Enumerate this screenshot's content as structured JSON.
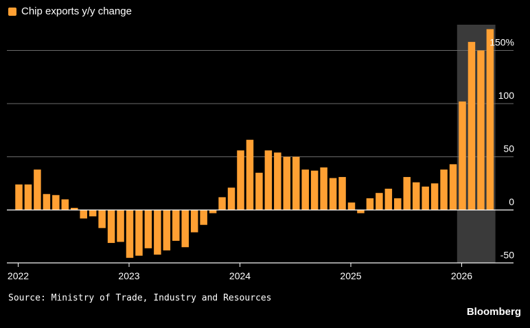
{
  "legend": {
    "label": "Chip exports y/y change"
  },
  "source": "Source: Ministry of Trade, Industry and Resources",
  "brand": "Bloomberg",
  "colors": {
    "bar": "#ffa033",
    "background": "#000000",
    "grid": "#6b6b6b",
    "highlight": "#3a3a3a",
    "text": "#ffffff"
  },
  "chart_data": {
    "type": "bar",
    "title": "",
    "xlabel": "",
    "ylabel": "",
    "ylim": [
      -50,
      170
    ],
    "y_ticks": [
      -50,
      0,
      50,
      100,
      150
    ],
    "y_tick_labels": [
      "-50",
      "0",
      "50",
      "100",
      "150%"
    ],
    "x_tick_labels": [
      "2022",
      "2023",
      "2024",
      "2025",
      "2026"
    ],
    "grid": "horizontal",
    "legend_position": "top-left",
    "highlighted_range": [
      "2026-01",
      "2026-04"
    ],
    "series": [
      {
        "name": "Chip exports y/y change",
        "x": [
          "2022-01",
          "2022-02",
          "2022-03",
          "2022-04",
          "2022-05",
          "2022-06",
          "2022-07",
          "2022-08",
          "2022-09",
          "2022-10",
          "2022-11",
          "2022-12",
          "2023-01",
          "2023-02",
          "2023-03",
          "2023-04",
          "2023-05",
          "2023-06",
          "2023-07",
          "2023-08",
          "2023-09",
          "2023-10",
          "2023-11",
          "2023-12",
          "2024-01",
          "2024-02",
          "2024-03",
          "2024-04",
          "2024-05",
          "2024-06",
          "2024-07",
          "2024-08",
          "2024-09",
          "2024-10",
          "2024-11",
          "2024-12",
          "2025-01",
          "2025-02",
          "2025-03",
          "2025-04",
          "2025-05",
          "2025-06",
          "2025-07",
          "2025-08",
          "2025-09",
          "2025-10",
          "2025-11",
          "2025-12",
          "2026-01",
          "2026-02",
          "2026-03",
          "2026-04"
        ],
        "values": [
          24,
          24,
          38,
          15,
          14,
          10,
          2,
          -8,
          -6,
          -17,
          -31,
          -30,
          -45,
          -43,
          -36,
          -42,
          -38,
          -29,
          -35,
          -21,
          -14,
          -3,
          12,
          21,
          56,
          66,
          35,
          56,
          54,
          50,
          50,
          38,
          37,
          40,
          30,
          31,
          7,
          -3,
          11,
          16,
          20,
          11,
          31,
          26,
          22,
          25,
          38,
          43,
          102,
          158,
          150,
          170
        ]
      }
    ]
  }
}
